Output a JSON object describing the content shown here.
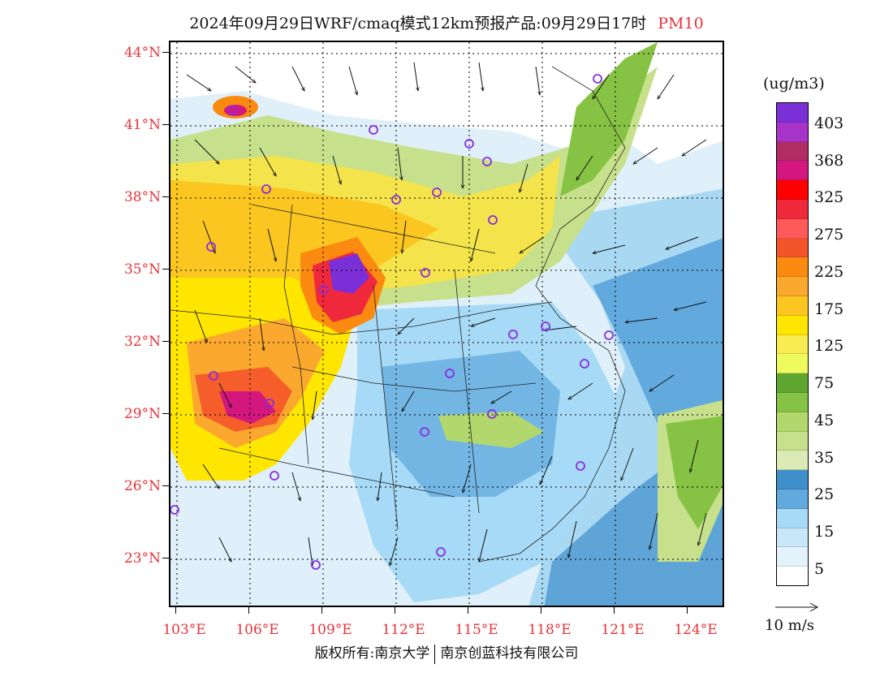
{
  "title": {
    "main": "2024年09月29日WRF/cmaq模式12km预报产品:09月29日17时",
    "pollutant": "PM10"
  },
  "colors": {
    "accent_red": "#e8333a"
  },
  "map": {
    "lat_labels": [
      "44°N",
      "41°N",
      "38°N",
      "35°N",
      "32°N",
      "29°N",
      "26°N",
      "23°N"
    ],
    "lon_labels": [
      "103°E",
      "106°E",
      "109°E",
      "112°E",
      "115°E",
      "118°E",
      "121°E",
      "124°E"
    ]
  },
  "colorbar": {
    "unit": "(ug/m3)",
    "labels": [
      "403",
      "368",
      "325",
      "275",
      "225",
      "175",
      "125",
      "75",
      "45",
      "35",
      "25",
      "15",
      "5"
    ],
    "colors": [
      "#7b2fd6",
      "#a833c8",
      "#b12c62",
      "#d3177e",
      "#ff0000",
      "#f0283c",
      "#ff5a5a",
      "#f4542a",
      "#fb8a10",
      "#fba92e",
      "#fcc620",
      "#ffe600",
      "#f8ec52",
      "#eefa5e",
      "#5fa631",
      "#86c243",
      "#b2d86d",
      "#c7e08c",
      "#dceab5",
      "#3f8fcb",
      "#62a9de",
      "#a7daf6",
      "#c9e7f8",
      "#e4f3fb",
      "#ffffff"
    ]
  },
  "vector_ref": {
    "label": "10 m/s"
  },
  "footer": {
    "left": "版权所有:南京大学",
    "right": "南京创蓝科技有限公司"
  }
}
